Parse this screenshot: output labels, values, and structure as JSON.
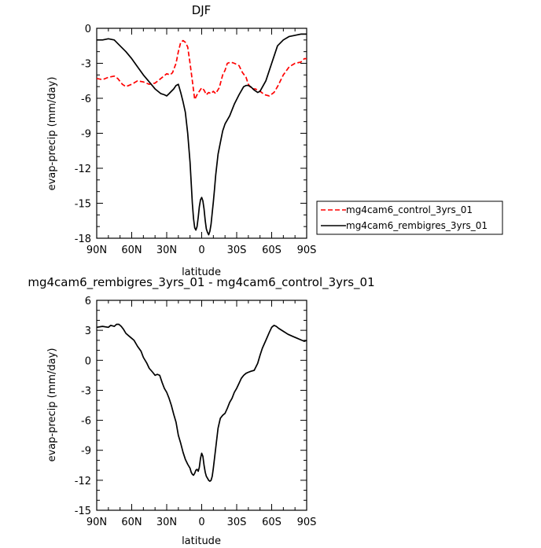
{
  "chart_data": [
    {
      "type": "line",
      "title": "DJF",
      "xlabel": "latitude",
      "ylabel": "evap-precip (mm/day)",
      "xlim": [
        90,
        -90
      ],
      "ylim": [
        -18,
        0
      ],
      "xticks": [
        90,
        60,
        30,
        0,
        -30,
        -60,
        -90
      ],
      "xtick_labels": [
        "90N",
        "60N",
        "30N",
        "0",
        "30S",
        "60S",
        "90S"
      ],
      "yticks": [
        0,
        -3,
        -6,
        -9,
        -12,
        -15,
        -18
      ],
      "ytick_labels": [
        "0",
        "-3",
        "-6",
        "-9",
        "-12",
        "-15",
        "-18"
      ],
      "grid": false,
      "legend_position": "right",
      "series": [
        {
          "name": "mg4cam6_control_3yrs_01",
          "color": "#ff0000",
          "dash": "dashed",
          "x": [
            90,
            85,
            80,
            75,
            72,
            68,
            65,
            60,
            55,
            50,
            45,
            40,
            35,
            30,
            27,
            25,
            22,
            20,
            18,
            16,
            14,
            12,
            10,
            8,
            6,
            4,
            2,
            0,
            -2,
            -4,
            -6,
            -8,
            -10,
            -12,
            -15,
            -18,
            -20,
            -22,
            -25,
            -28,
            -30,
            -32,
            -35,
            -38,
            -40,
            -43,
            -46,
            -50,
            -54,
            -58,
            -62,
            -65,
            -70,
            -75,
            -80,
            -85,
            -88,
            -90
          ],
          "y": [
            -4.3,
            -4.4,
            -4.2,
            -4.1,
            -4.3,
            -4.8,
            -5.0,
            -4.8,
            -4.5,
            -4.6,
            -4.8,
            -4.7,
            -4.3,
            -3.9,
            -4.0,
            -3.8,
            -3.0,
            -2.0,
            -1.2,
            -1.05,
            -1.2,
            -1.6,
            -3.0,
            -4.5,
            -6.1,
            -5.7,
            -5.4,
            -5.1,
            -5.3,
            -5.7,
            -5.5,
            -5.6,
            -5.4,
            -5.6,
            -5.1,
            -4.0,
            -3.6,
            -3.0,
            -2.9,
            -3.0,
            -3.1,
            -3.2,
            -3.8,
            -4.2,
            -4.8,
            -5.2,
            -5.2,
            -5.4,
            -5.7,
            -5.8,
            -5.5,
            -5.0,
            -4.0,
            -3.3,
            -3.0,
            -2.9,
            -2.6,
            -2.6
          ]
        },
        {
          "name": "mg4cam6_rembigres_3yrs_01",
          "color": "#000000",
          "dash": "solid",
          "x": [
            90,
            85,
            80,
            75,
            70,
            65,
            60,
            55,
            50,
            45,
            40,
            35,
            32,
            30,
            28,
            26,
            24,
            22,
            20,
            18,
            16,
            14,
            12,
            10,
            9,
            8,
            7,
            6,
            5,
            4,
            3,
            2,
            1,
            0,
            -1,
            -2,
            -3,
            -4,
            -5,
            -6,
            -7,
            -8,
            -9,
            -10,
            -11,
            -12,
            -14,
            -16,
            -18,
            -20,
            -24,
            -28,
            -32,
            -36,
            -38,
            -40,
            -42,
            -45,
            -48,
            -50,
            -55,
            -60,
            -65,
            -70,
            -75,
            -80,
            -85,
            -90
          ],
          "y": [
            -1.0,
            -1.0,
            -0.9,
            -1.0,
            -1.5,
            -2.0,
            -2.6,
            -3.3,
            -4.0,
            -4.6,
            -5.2,
            -5.6,
            -5.7,
            -5.8,
            -5.6,
            -5.4,
            -5.2,
            -4.9,
            -4.8,
            -5.5,
            -6.3,
            -7.2,
            -9.0,
            -11.5,
            -13.3,
            -15.0,
            -16.3,
            -17.1,
            -17.3,
            -17.0,
            -16.2,
            -15.3,
            -14.7,
            -14.5,
            -14.8,
            -15.5,
            -16.5,
            -17.2,
            -17.5,
            -17.7,
            -17.4,
            -16.8,
            -15.8,
            -14.9,
            -13.8,
            -12.6,
            -10.8,
            -9.8,
            -8.8,
            -8.2,
            -7.5,
            -6.5,
            -5.7,
            -5.0,
            -4.9,
            -4.9,
            -5.0,
            -5.3,
            -5.5,
            -5.4,
            -4.5,
            -3.0,
            -1.5,
            -1.0,
            -0.7,
            -0.6,
            -0.5,
            -0.5
          ]
        }
      ]
    },
    {
      "type": "line",
      "title": "mg4cam6_rembigres_3yrs_01 - mg4cam6_control_3yrs_01",
      "xlabel": "latitude",
      "ylabel": "evap-precip (mm/day)",
      "xlim": [
        90,
        -90
      ],
      "ylim": [
        -15,
        6
      ],
      "xticks": [
        90,
        60,
        30,
        0,
        -30,
        -60,
        -90
      ],
      "xtick_labels": [
        "90N",
        "60N",
        "30N",
        "0",
        "30S",
        "60S",
        "90S"
      ],
      "yticks": [
        6,
        3,
        0,
        -3,
        -6,
        -9,
        -12,
        -15
      ],
      "ytick_labels": [
        "6",
        "3",
        "0",
        "-3",
        "-6",
        "-9",
        "-12",
        "-15"
      ],
      "grid": false,
      "series": [
        {
          "color": "#000000",
          "dash": "solid",
          "x": [
            90,
            85,
            80,
            78,
            75,
            73,
            71,
            69,
            67,
            65,
            62,
            60,
            58,
            55,
            52,
            50,
            47,
            45,
            42,
            40,
            38,
            36,
            34,
            32,
            30,
            28,
            26,
            24,
            22,
            20,
            18,
            16,
            14,
            12,
            10,
            9,
            8,
            7,
            6,
            5,
            4,
            3,
            2,
            1,
            0,
            -1,
            -2,
            -3,
            -4,
            -5,
            -6,
            -7,
            -8,
            -9,
            -10,
            -12,
            -14,
            -16,
            -18,
            -20,
            -22,
            -24,
            -26,
            -28,
            -30,
            -32,
            -34,
            -36,
            -38,
            -40,
            -42,
            -45,
            -48,
            -50,
            -52,
            -55,
            -58,
            -60,
            -62,
            -64,
            -66,
            -70,
            -74,
            -78,
            -82,
            -86,
            -88,
            -90
          ],
          "y": [
            3.3,
            3.4,
            3.3,
            3.5,
            3.4,
            3.6,
            3.6,
            3.4,
            3.1,
            2.7,
            2.4,
            2.2,
            2.0,
            1.4,
            0.9,
            0.3,
            -0.3,
            -0.8,
            -1.2,
            -1.5,
            -1.4,
            -1.5,
            -2.2,
            -2.8,
            -3.2,
            -3.8,
            -4.5,
            -5.4,
            -6.2,
            -7.5,
            -8.3,
            -9.2,
            -9.9,
            -10.4,
            -10.8,
            -11.2,
            -11.4,
            -11.5,
            -11.3,
            -11.0,
            -10.9,
            -11.1,
            -10.7,
            -9.8,
            -9.3,
            -9.6,
            -10.5,
            -11.2,
            -11.6,
            -11.8,
            -12.0,
            -12.1,
            -12.0,
            -11.6,
            -10.8,
            -8.8,
            -6.8,
            -5.8,
            -5.5,
            -5.3,
            -4.8,
            -4.2,
            -3.8,
            -3.2,
            -2.8,
            -2.3,
            -1.8,
            -1.5,
            -1.3,
            -1.2,
            -1.1,
            -1.0,
            -0.3,
            0.5,
            1.2,
            2.0,
            2.8,
            3.3,
            3.5,
            3.4,
            3.2,
            2.9,
            2.6,
            2.4,
            2.2,
            2.0,
            1.9,
            2.0
          ]
        }
      ]
    }
  ]
}
